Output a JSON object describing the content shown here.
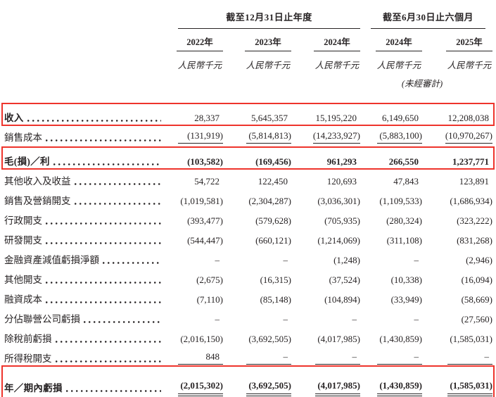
{
  "table": {
    "period_groups": [
      {
        "label": "截至12月31日止年度"
      },
      {
        "label": "截至6月30日止六個月"
      }
    ],
    "columns": [
      "2022年",
      "2023年",
      "2024年",
      "2024年",
      "2025年"
    ],
    "unit_label": "人民幣千元",
    "unaudited_label": "(未經審計)",
    "highlight_color": "#ee342c",
    "rows": [
      {
        "label": "收入",
        "label_bold": true,
        "values_bold": false,
        "underline": "none",
        "highlight": true,
        "values": [
          "28,337",
          "5,645,357",
          "15,195,220",
          "6,149,650",
          "12,208,038"
        ]
      },
      {
        "label": "銷售成本",
        "label_bold": false,
        "values_bold": false,
        "underline": "single",
        "highlight": false,
        "values": [
          "(131,919)",
          "(5,814,813)",
          "(14,233,927)",
          "(5,883,100)",
          "(10,970,267)"
        ]
      },
      {
        "label": "毛(損)／利",
        "label_bold": true,
        "values_bold": true,
        "underline": "none",
        "highlight": true,
        "values": [
          "(103,582)",
          "(169,456)",
          "961,293",
          "266,550",
          "1,237,771"
        ]
      },
      {
        "label": "其他收入及收益",
        "label_bold": false,
        "values_bold": false,
        "underline": "none",
        "highlight": false,
        "values": [
          "54,722",
          "122,450",
          "120,693",
          "47,843",
          "123,891"
        ]
      },
      {
        "label": "銷售及營銷開支",
        "label_bold": false,
        "values_bold": false,
        "underline": "none",
        "highlight": false,
        "values": [
          "(1,019,581)",
          "(2,304,287)",
          "(3,036,301)",
          "(1,109,533)",
          "(1,686,934)"
        ]
      },
      {
        "label": "行政開支",
        "label_bold": false,
        "values_bold": false,
        "underline": "none",
        "highlight": false,
        "values": [
          "(393,477)",
          "(579,628)",
          "(705,935)",
          "(280,324)",
          "(323,222)"
        ]
      },
      {
        "label": "研發開支",
        "label_bold": false,
        "values_bold": false,
        "underline": "none",
        "highlight": false,
        "values": [
          "(544,447)",
          "(660,121)",
          "(1,214,069)",
          "(311,108)",
          "(831,268)"
        ]
      },
      {
        "label": "金融資產減值虧損淨額",
        "label_bold": false,
        "values_bold": false,
        "underline": "none",
        "highlight": false,
        "values": [
          "–",
          "–",
          "(1,248)",
          "–",
          "(2,946)"
        ]
      },
      {
        "label": "其他開支",
        "label_bold": false,
        "values_bold": false,
        "underline": "none",
        "highlight": false,
        "values": [
          "(2,675)",
          "(16,315)",
          "(37,524)",
          "(10,338)",
          "(16,094)"
        ]
      },
      {
        "label": "融資成本",
        "label_bold": false,
        "values_bold": false,
        "underline": "none",
        "highlight": false,
        "values": [
          "(7,110)",
          "(85,148)",
          "(104,894)",
          "(33,949)",
          "(58,669)"
        ]
      },
      {
        "label": "分佔聯營公司虧損",
        "label_bold": false,
        "values_bold": false,
        "underline": "none",
        "highlight": false,
        "values": [
          "–",
          "–",
          "–",
          "–",
          "(27,560)"
        ]
      },
      {
        "label": "除稅前虧損",
        "label_bold": false,
        "values_bold": false,
        "underline": "none",
        "highlight": false,
        "values": [
          "(2,016,150)",
          "(3,692,505)",
          "(4,017,985)",
          "(1,430,859)",
          "(1,585,031)"
        ]
      },
      {
        "label": "所得稅開支",
        "label_bold": false,
        "values_bold": false,
        "underline": "single",
        "highlight": false,
        "values": [
          "848",
          "–",
          "–",
          "–",
          "–"
        ]
      },
      {
        "label": "年／期內虧損",
        "label_bold": true,
        "values_bold": true,
        "underline": "double",
        "highlight": true,
        "values": [
          "(2,015,302)",
          "(3,692,505)",
          "(4,017,985)",
          "(1,430,859)",
          "(1,585,031)"
        ]
      }
    ]
  }
}
